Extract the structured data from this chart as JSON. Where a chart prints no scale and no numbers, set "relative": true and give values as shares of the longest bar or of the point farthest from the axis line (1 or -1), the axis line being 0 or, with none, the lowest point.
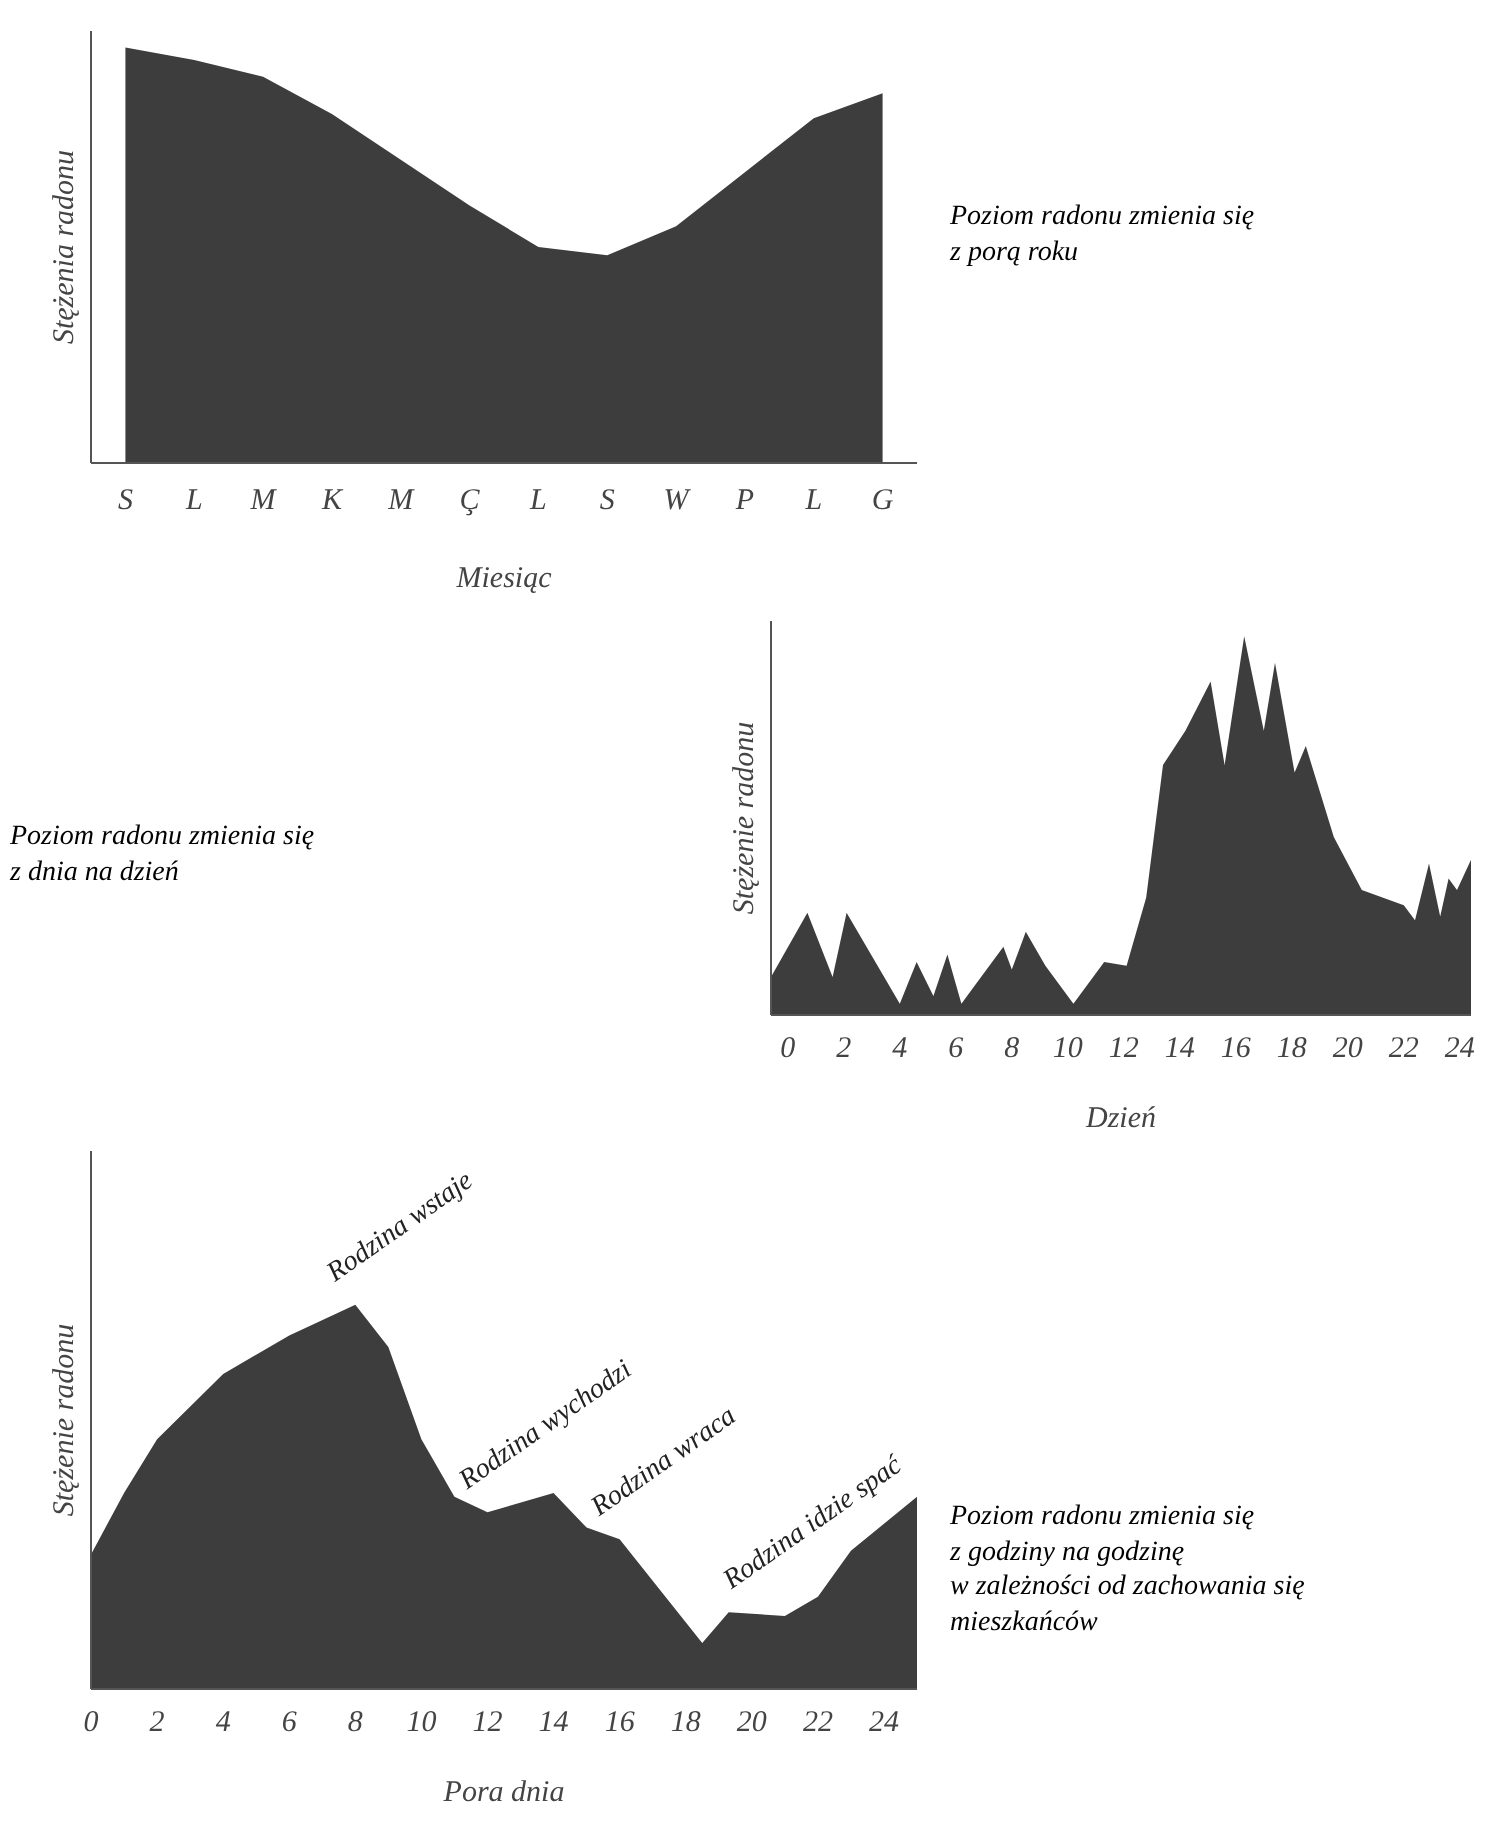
{
  "chart_data": [
    {
      "type": "area",
      "relative": true,
      "ylabel": "Stężenia radonu",
      "xlabel": "Miesiąc",
      "categories": [
        "S",
        "L",
        "M",
        "K",
        "M",
        "Ç",
        "L",
        "S",
        "W",
        "P",
        "L",
        "G"
      ],
      "values": [
        1.0,
        0.97,
        0.93,
        0.84,
        0.73,
        0.62,
        0.52,
        0.5,
        0.57,
        0.7,
        0.83,
        0.89
      ],
      "color": "#3d3d3d",
      "annotations": [
        "Poziom radonu zmienia się\nz porą roku"
      ]
    },
    {
      "type": "area",
      "relative": true,
      "ylabel": "Stężenie radonu",
      "xlabel": "Dzień",
      "x": [
        -0.6,
        0.7,
        1.6,
        2.1,
        4.0,
        4.6,
        5.2,
        5.7,
        6.2,
        6.6,
        7.7,
        8.0,
        8.5,
        9.2,
        10.2,
        11.3,
        12.1,
        12.8,
        13.4,
        14.2,
        15.1,
        15.6,
        16.3,
        17.0,
        17.4,
        18.1,
        18.5,
        19.5,
        20.5,
        22.0,
        22.4,
        22.9,
        23.3,
        23.6,
        23.9,
        24.4
      ],
      "values": [
        0.1,
        0.27,
        0.1,
        0.27,
        0.03,
        0.14,
        0.05,
        0.16,
        0.03,
        0.07,
        0.18,
        0.12,
        0.22,
        0.13,
        0.03,
        0.14,
        0.13,
        0.31,
        0.66,
        0.75,
        0.88,
        0.66,
        1.0,
        0.75,
        0.93,
        0.64,
        0.71,
        0.47,
        0.33,
        0.29,
        0.25,
        0.4,
        0.26,
        0.36,
        0.33,
        0.41
      ],
      "color": "#3d3d3d",
      "xlim": [
        -0.6,
        24.4
      ],
      "xticks": [
        0,
        2,
        4,
        6,
        8,
        10,
        12,
        14,
        16,
        18,
        20,
        22,
        24
      ],
      "annotations": [
        "Poziom radonu zmienia się\nz dnia na dzień"
      ]
    },
    {
      "type": "area",
      "relative": true,
      "ylabel": "Stężenie radonu",
      "xlabel": "Pora dnia",
      "x": [
        0,
        1,
        2,
        4,
        6,
        8,
        9,
        10,
        11,
        12,
        14,
        15,
        16,
        18.5,
        19.3,
        21,
        22,
        23,
        25
      ],
      "values": [
        0.35,
        0.51,
        0.65,
        0.82,
        0.92,
        1.0,
        0.89,
        0.65,
        0.5,
        0.46,
        0.51,
        0.42,
        0.39,
        0.12,
        0.2,
        0.19,
        0.24,
        0.36,
        0.5
      ],
      "color": "#3d3d3d",
      "xlim": [
        0,
        25
      ],
      "xticks": [
        0,
        2,
        4,
        6,
        8,
        10,
        12,
        14,
        16,
        18,
        20,
        22,
        24
      ],
      "annotations": [
        {
          "text": "Rodzina wstaje",
          "x": 8,
          "y": 1.0
        },
        {
          "text": "Rodzina wychodzi",
          "x": 12,
          "y": 0.46
        },
        {
          "text": "Rodzina wraca",
          "x": 16,
          "y": 0.39
        },
        {
          "text": "Rodzina idzie spać",
          "x": 20,
          "y": 0.2
        },
        "Poziom radonu zmienia się\nz godziny na godzinę\nw zależności od zachowania się\nmieszkańców"
      ]
    }
  ]
}
